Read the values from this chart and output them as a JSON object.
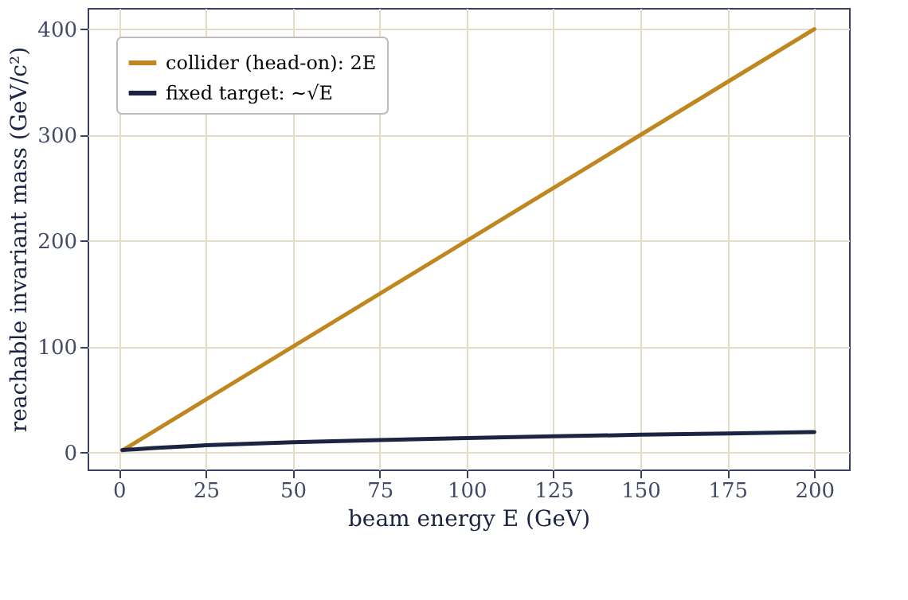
{
  "chart_data": {
    "type": "line",
    "xlabel": "beam energy E (GeV)",
    "ylabel": "reachable invariant mass (GeV/c²)",
    "xlim": [
      -9,
      210
    ],
    "ylim": [
      -16,
      420
    ],
    "xticks": [
      0,
      25,
      50,
      75,
      100,
      125,
      150,
      175,
      200
    ],
    "yticks": [
      0,
      100,
      200,
      300,
      400
    ],
    "grid": true,
    "legend": "top left",
    "line_style": "solid",
    "marker": "none",
    "series": [
      {
        "name": "collider (head-on): 2E",
        "color": "#c0861f",
        "x": [
          1,
          200
        ],
        "values": [
          2,
          400
        ]
      },
      {
        "name": "fixed target: ∼√E",
        "color": "#1b2442",
        "x": [
          1,
          5,
          10,
          25,
          50,
          75,
          100,
          125,
          150,
          175,
          200
        ],
        "values": [
          2.5,
          3.1,
          4.3,
          6.9,
          9.7,
          11.9,
          13.7,
          15.3,
          16.8,
          18.1,
          19.4
        ]
      }
    ]
  }
}
